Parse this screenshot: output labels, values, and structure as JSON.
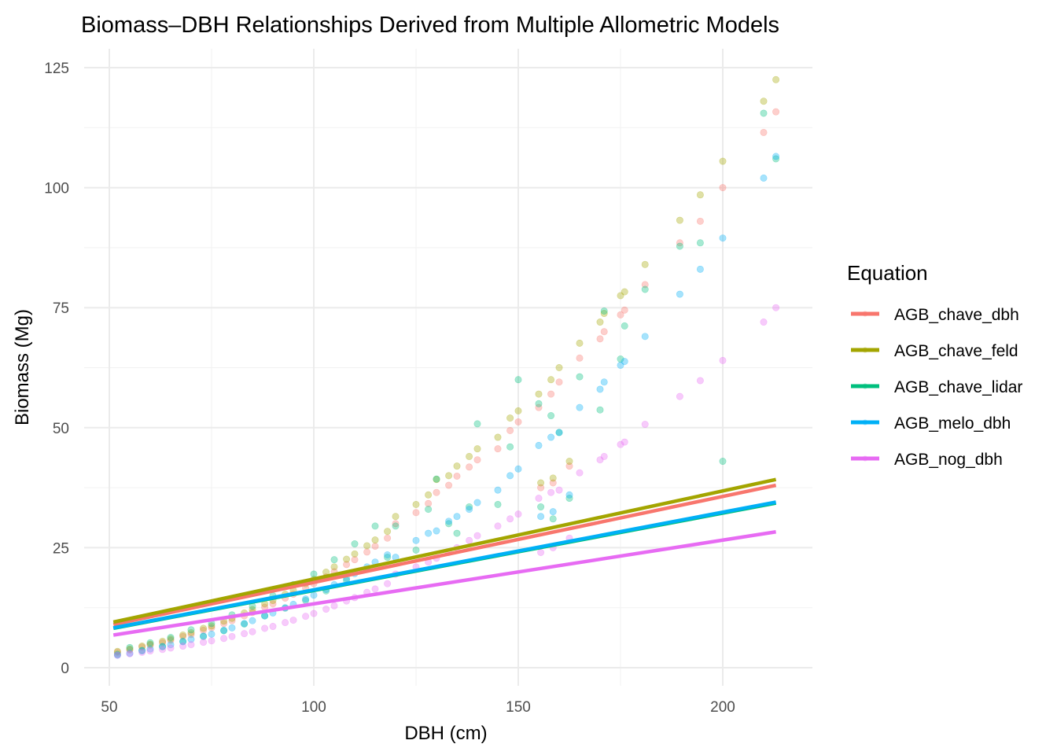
{
  "chart_data": {
    "type": "scatter",
    "title": "Biomass–DBH Relationships Derived from Multiple Allometric Models",
    "xlabel": "DBH (cm)",
    "ylabel": "Biomass (Mg)",
    "xlim": [
      44,
      222
    ],
    "ylim": [
      -4,
      128
    ],
    "x_ticks": [
      50,
      100,
      150,
      200
    ],
    "y_ticks": [
      0,
      25,
      50,
      75,
      100,
      125
    ],
    "x_tick_labels": [
      "50",
      "100",
      "150",
      "200"
    ],
    "y_tick_labels": [
      "0",
      "25",
      "50",
      "75",
      "100",
      "125"
    ],
    "grid": true,
    "legend": {
      "title": "Equation",
      "placement": "right"
    },
    "x": [
      52,
      55,
      58,
      60,
      63,
      65,
      68,
      70,
      73,
      75,
      78,
      80,
      83,
      85,
      88,
      90,
      93,
      95,
      98,
      100,
      103,
      105,
      108,
      110,
      113,
      115,
      118,
      120,
      125,
      128,
      130,
      133,
      135,
      138,
      140,
      145,
      148,
      150,
      155,
      155.5,
      158,
      158.5,
      160,
      162.5,
      165,
      170,
      171,
      175,
      176,
      181,
      189.5,
      194.5,
      200,
      210,
      213
    ],
    "series": [
      {
        "name": "AGB_chave_dbh",
        "color": "#F8766D",
        "values": [
          3.2,
          3.7,
          4.3,
          4.7,
          5.2,
          5.7,
          6.5,
          6.9,
          7.8,
          8.3,
          9.2,
          9.8,
          10.8,
          11.5,
          12.6,
          13.3,
          14.5,
          15.3,
          16.6,
          17.5,
          18.9,
          20.0,
          21.5,
          22.5,
          24.1,
          25.3,
          27.0,
          30.0,
          32.3,
          34.2,
          36.5,
          38.0,
          39.9,
          41.8,
          43.3,
          45.6,
          49.4,
          51.2,
          54.2,
          37.5,
          57,
          38.5,
          59.5,
          42,
          64.5,
          68.5,
          70,
          73.5,
          74.5,
          79.8,
          88.5,
          93,
          100,
          111.5,
          115.8
        ],
        "fit": {
          "x": [
            51,
            213
          ],
          "y": [
            9.0,
            38.0
          ]
        }
      },
      {
        "name": "AGB_chave_feld",
        "color": "#A3A500",
        "values": [
          3.4,
          3.9,
          4.5,
          4.9,
          5.5,
          6.0,
          6.8,
          7.3,
          8.2,
          8.7,
          9.7,
          10.3,
          11.4,
          12.1,
          13.3,
          14.0,
          15.3,
          16.1,
          17.5,
          18.4,
          19.9,
          21.0,
          22.6,
          23.7,
          25.4,
          26.6,
          28.4,
          31.5,
          34,
          36,
          39.2,
          40,
          42,
          44,
          45.6,
          48,
          52,
          53.5,
          57,
          38.5,
          60,
          39.5,
          62.5,
          43,
          67.6,
          72,
          73.8,
          77.5,
          78.3,
          84,
          93.2,
          98.5,
          105.5,
          118,
          122.5
        ],
        "fit": {
          "x": [
            51,
            213
          ],
          "y": [
            9.5,
            39.2
          ]
        }
      },
      {
        "name": "AGB_chave_lidar",
        "color": "#00BF7D",
        "values": [
          2.8,
          4.2,
          3.6,
          5.2,
          4.4,
          6.3,
          5.5,
          7.9,
          6.5,
          9.2,
          7.7,
          11.0,
          9.1,
          12.8,
          10.8,
          15.0,
          12.4,
          17.3,
          14.0,
          19.5,
          16.0,
          22.5,
          18.2,
          25.8,
          20.5,
          29.5,
          23.0,
          29.5,
          24.5,
          33.0,
          39.3,
          30.0,
          28.0,
          33.5,
          50.8,
          34.0,
          46.0,
          60,
          55,
          33.5,
          52.5,
          31,
          49,
          35.3,
          60.6,
          53.7,
          74.3,
          64.3,
          71.2,
          78.8,
          87.8,
          88.5,
          43,
          115.5,
          106
        ],
        "fit": {
          "x": [
            51,
            213
          ],
          "y": [
            8.2,
            34.3
          ]
        }
      },
      {
        "name": "AGB_melo_dbh",
        "color": "#00B0F6",
        "values": [
          2.6,
          3.0,
          3.5,
          3.9,
          4.4,
          4.8,
          5.4,
          5.9,
          6.6,
          7.0,
          7.8,
          8.3,
          9.2,
          9.8,
          10.8,
          11.4,
          12.5,
          13.2,
          14.3,
          15.1,
          16.3,
          17.3,
          18.6,
          19.6,
          21.0,
          22.0,
          23.5,
          23.0,
          26.5,
          28.0,
          28.5,
          30.5,
          31.5,
          33.0,
          34.4,
          37,
          40,
          41.4,
          46.3,
          31.5,
          48,
          32.5,
          49,
          36,
          54.2,
          58,
          59.5,
          63,
          63.8,
          69,
          77.8,
          83,
          89.5,
          102,
          106.5
        ],
        "fit": {
          "x": [
            51,
            213
          ],
          "y": [
            8.3,
            34.5
          ]
        }
      },
      {
        "name": "AGB_nog_dbh",
        "color": "#E76BF3",
        "values": [
          2.6,
          2.9,
          3.2,
          3.5,
          3.8,
          4.1,
          4.5,
          4.8,
          5.3,
          5.6,
          6.1,
          6.5,
          7.1,
          7.5,
          8.2,
          8.6,
          9.4,
          9.9,
          10.7,
          11.3,
          12.2,
          12.9,
          13.9,
          14.6,
          15.7,
          16.4,
          17.5,
          19.5,
          21,
          22,
          22.8,
          24,
          25,
          26.5,
          27.5,
          29.5,
          31,
          32,
          35.3,
          24,
          36.5,
          25,
          37,
          27,
          40.6,
          43.3,
          44,
          46.5,
          47,
          50.7,
          56.5,
          59.8,
          64,
          72,
          75
        ],
        "fit": {
          "x": [
            51,
            213
          ],
          "y": [
            6.8,
            28.3
          ]
        }
      }
    ]
  }
}
